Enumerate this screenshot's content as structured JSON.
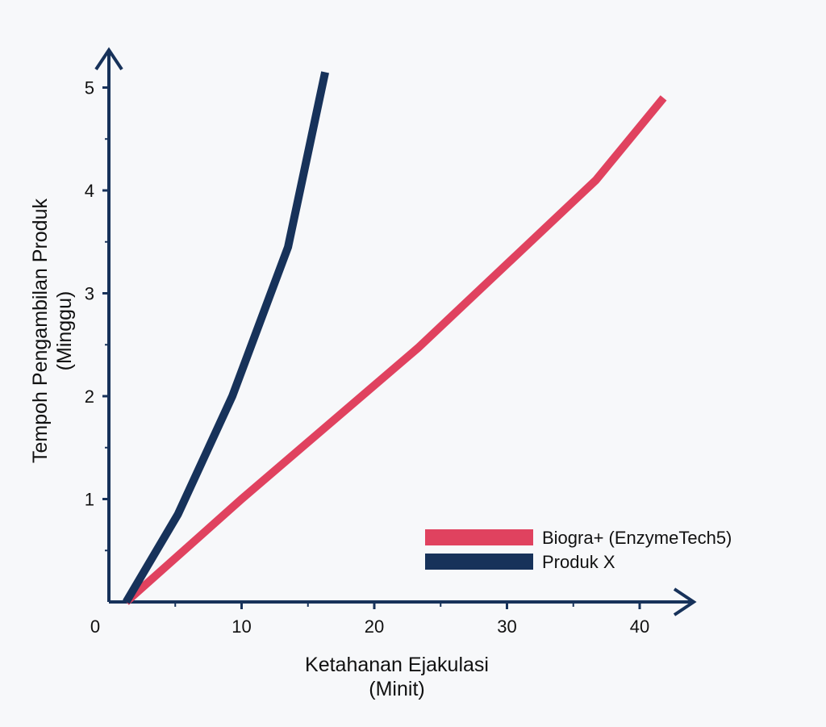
{
  "chart_data": {
    "type": "line",
    "xlabel_line1": "Ketahanan Ejakulasi",
    "xlabel_line2": "(Minit)",
    "ylabel_line1": "Tempoh Pengambilan Produk",
    "ylabel_line2": "(Minggu)",
    "xlim": [
      0,
      45
    ],
    "ylim": [
      0,
      5.3
    ],
    "x_ticks": [
      0,
      10,
      20,
      30,
      40
    ],
    "x_tick_labels": [
      "0",
      "10",
      "20",
      "30",
      "40"
    ],
    "y_ticks": [
      1,
      2,
      3,
      4,
      5
    ],
    "y_tick_labels": [
      "1",
      "2",
      "3",
      "4",
      "5"
    ],
    "legend_position": "bottom-right",
    "grid": false,
    "series": [
      {
        "name": "Biogra+ (EnzymeTech5)",
        "color": "#e0425f",
        "points": [
          [
            1.3,
            0
          ],
          [
            10,
            1.0
          ],
          [
            23.3,
            2.47
          ],
          [
            36.7,
            4.1
          ],
          [
            41.8,
            4.9
          ]
        ]
      },
      {
        "name": "Produk X",
        "color": "#17325a",
        "points": [
          [
            1.3,
            0
          ],
          [
            5.2,
            0.85
          ],
          [
            9.3,
            2.0
          ],
          [
            13.5,
            3.45
          ],
          [
            16.3,
            5.15
          ]
        ]
      }
    ]
  }
}
